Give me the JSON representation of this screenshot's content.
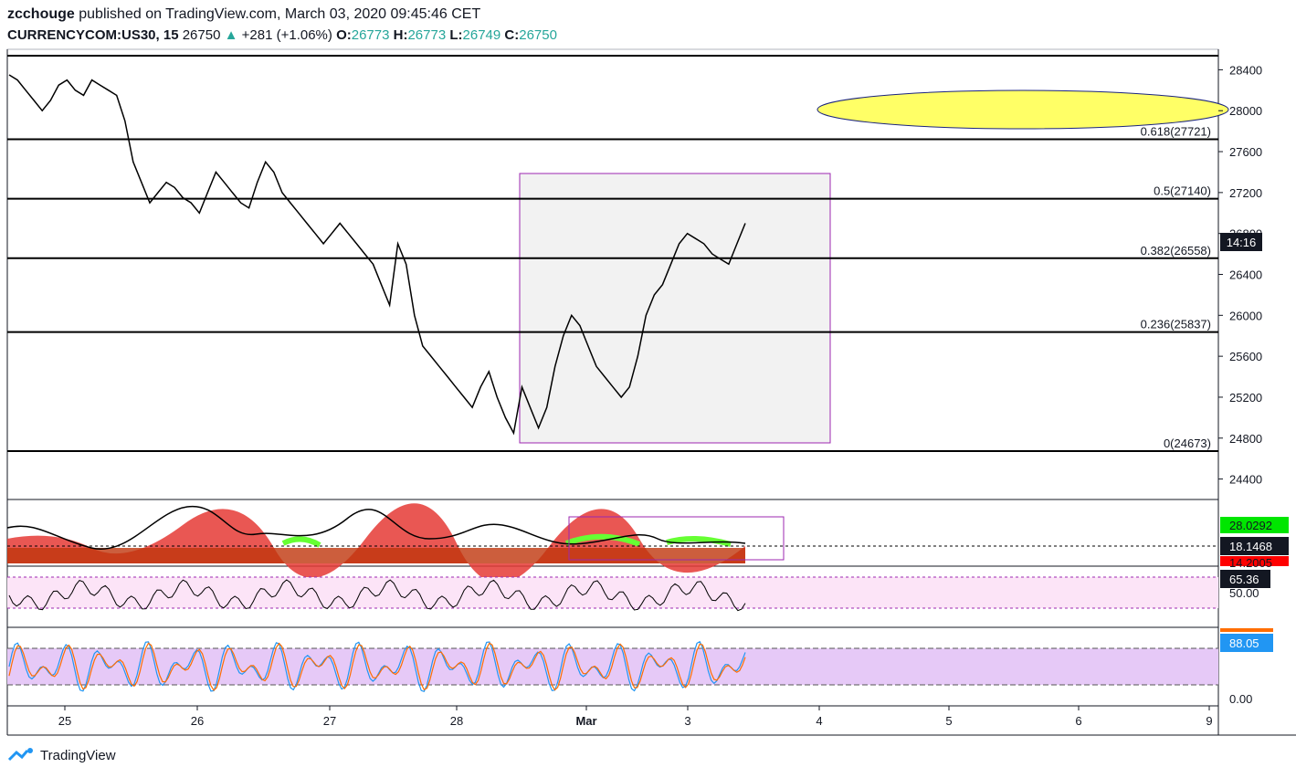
{
  "header": {
    "publisher": "zcchouge",
    "published_text": "published on TradingView.com, March 03, 2020 09:45:46 CET",
    "symbol": "CURRENCYCOM:US30, 15",
    "last": "26750",
    "arrow": "▲",
    "change": "+281 (+1.06%)",
    "o_label": "O:",
    "o_value": "26773",
    "h_label": "H:",
    "h_value": "26773",
    "l_label": "L:",
    "l_value": "26749",
    "c_label": "C:",
    "c_value": "26750"
  },
  "branding": {
    "name": "TradingView"
  },
  "colors": {
    "up": "#26a69a",
    "ellipse": "#ffff66",
    "rect_border": "#9c27b0",
    "rsi_fill": "#fce4f7",
    "stoch_fill": "#e6c9f7"
  },
  "price_axis": {
    "ticks": [
      "28400",
      "28000",
      "27600",
      "27200",
      "26800",
      "26400",
      "26000",
      "25600",
      "25200",
      "24800",
      "24400"
    ],
    "current_label": "14:16"
  },
  "time_axis": {
    "labels": [
      "25",
      "26",
      "27",
      "28",
      "Mar",
      "3",
      "4",
      "5",
      "6",
      "9"
    ]
  },
  "fib_levels": [
    {
      "label": "0.618(27721)"
    },
    {
      "label": "0.5(27140)"
    },
    {
      "label": "0.382(26558)"
    },
    {
      "label": "0.236(25837)"
    },
    {
      "label": "0(24673)"
    }
  ],
  "indicators": {
    "dmi": {
      "values": [
        "28.0292",
        "18.1468",
        "14.2005"
      ]
    },
    "rsi": {
      "value": "65.36",
      "tick": "50.00"
    },
    "stoch": {
      "value": "88.05",
      "tick": "0.00"
    }
  },
  "chart_data": {
    "type": "line",
    "title": "CURRENCYCOM:US30, 15",
    "x_range": [
      "25",
      "9"
    ],
    "ylim": [
      24200,
      28600
    ],
    "series": [
      {
        "values": [
          28350,
          28300,
          28200,
          28100,
          28000,
          28100,
          28250,
          28300,
          28200,
          28150,
          28300,
          28250,
          28200,
          28150,
          27900,
          27500,
          27300,
          27100,
          27200,
          27300,
          27250,
          27150,
          27100,
          27000,
          27200,
          27400,
          27300,
          27200,
          27100,
          27050,
          27300,
          27500,
          27400,
          27200,
          27100,
          27000,
          26900,
          26800,
          26700,
          26800,
          26900,
          26800,
          26700,
          26600,
          26500,
          26300,
          26100,
          26700,
          26500,
          26000,
          25700,
          25600,
          25500,
          25400,
          25300,
          25200,
          25100,
          25300,
          25450,
          25200,
          25000,
          24850,
          25300,
          25100,
          24900,
          25100,
          25500,
          25800,
          26000,
          25900,
          25700,
          25500,
          25400,
          25300,
          25200,
          25300,
          25600,
          26000,
          26200,
          26300,
          26500,
          26700,
          26800,
          26750,
          26700,
          26600,
          26550,
          26500,
          26700,
          26900
        ]
      }
    ]
  }
}
